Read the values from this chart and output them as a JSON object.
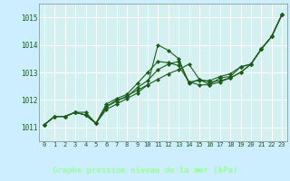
{
  "title": "Graphe pression niveau de la mer (hPa)",
  "xlabel_hours": [
    0,
    1,
    2,
    3,
    4,
    5,
    6,
    7,
    8,
    9,
    10,
    11,
    12,
    13,
    14,
    15,
    16,
    17,
    18,
    19,
    20,
    21,
    22,
    23
  ],
  "ylim": [
    1010.5,
    1015.5
  ],
  "yticks": [
    1011,
    1012,
    1013,
    1014,
    1015
  ],
  "background_color": "#cceeff",
  "plot_bg_color": "#d4f0f0",
  "grid_color": "#ffffff",
  "line_color": "#1a5c1a",
  "bottom_bar_color": "#336633",
  "bottom_bar_text_color": "#99ff99",
  "series": [
    [
      1011.1,
      1011.4,
      1011.4,
      1011.55,
      1011.55,
      1011.15,
      1011.75,
      1011.95,
      1012.15,
      1012.35,
      1012.55,
      1012.75,
      1012.95,
      1013.1,
      1013.3,
      1012.75,
      1012.65,
      1012.7,
      1012.8,
      1013.0,
      1013.3,
      1013.85,
      1014.3,
      1015.1
    ],
    [
      1011.1,
      1011.4,
      1011.4,
      1011.55,
      1011.45,
      1011.15,
      1011.65,
      1011.85,
      1012.05,
      1012.25,
      1012.55,
      1014.0,
      1013.8,
      1013.5,
      1012.6,
      1012.75,
      1012.55,
      1012.65,
      1012.8,
      1013.0,
      1013.3,
      1013.85,
      1014.3,
      1015.1
    ],
    [
      1011.1,
      1011.4,
      1011.4,
      1011.55,
      1011.45,
      1011.15,
      1011.75,
      1012.0,
      1012.1,
      1012.45,
      1012.7,
      1013.1,
      1013.3,
      1013.4,
      1012.65,
      1012.55,
      1012.55,
      1012.8,
      1012.85,
      1013.2,
      1013.3,
      1013.85,
      1014.3,
      1015.1
    ],
    [
      1011.1,
      1011.4,
      1011.4,
      1011.55,
      1011.45,
      1011.15,
      1011.85,
      1012.05,
      1012.2,
      1012.6,
      1013.0,
      1013.4,
      1013.35,
      1013.25,
      1012.65,
      1012.7,
      1012.7,
      1012.85,
      1012.95,
      1013.2,
      1013.3,
      1013.85,
      1014.3,
      1015.1
    ]
  ]
}
